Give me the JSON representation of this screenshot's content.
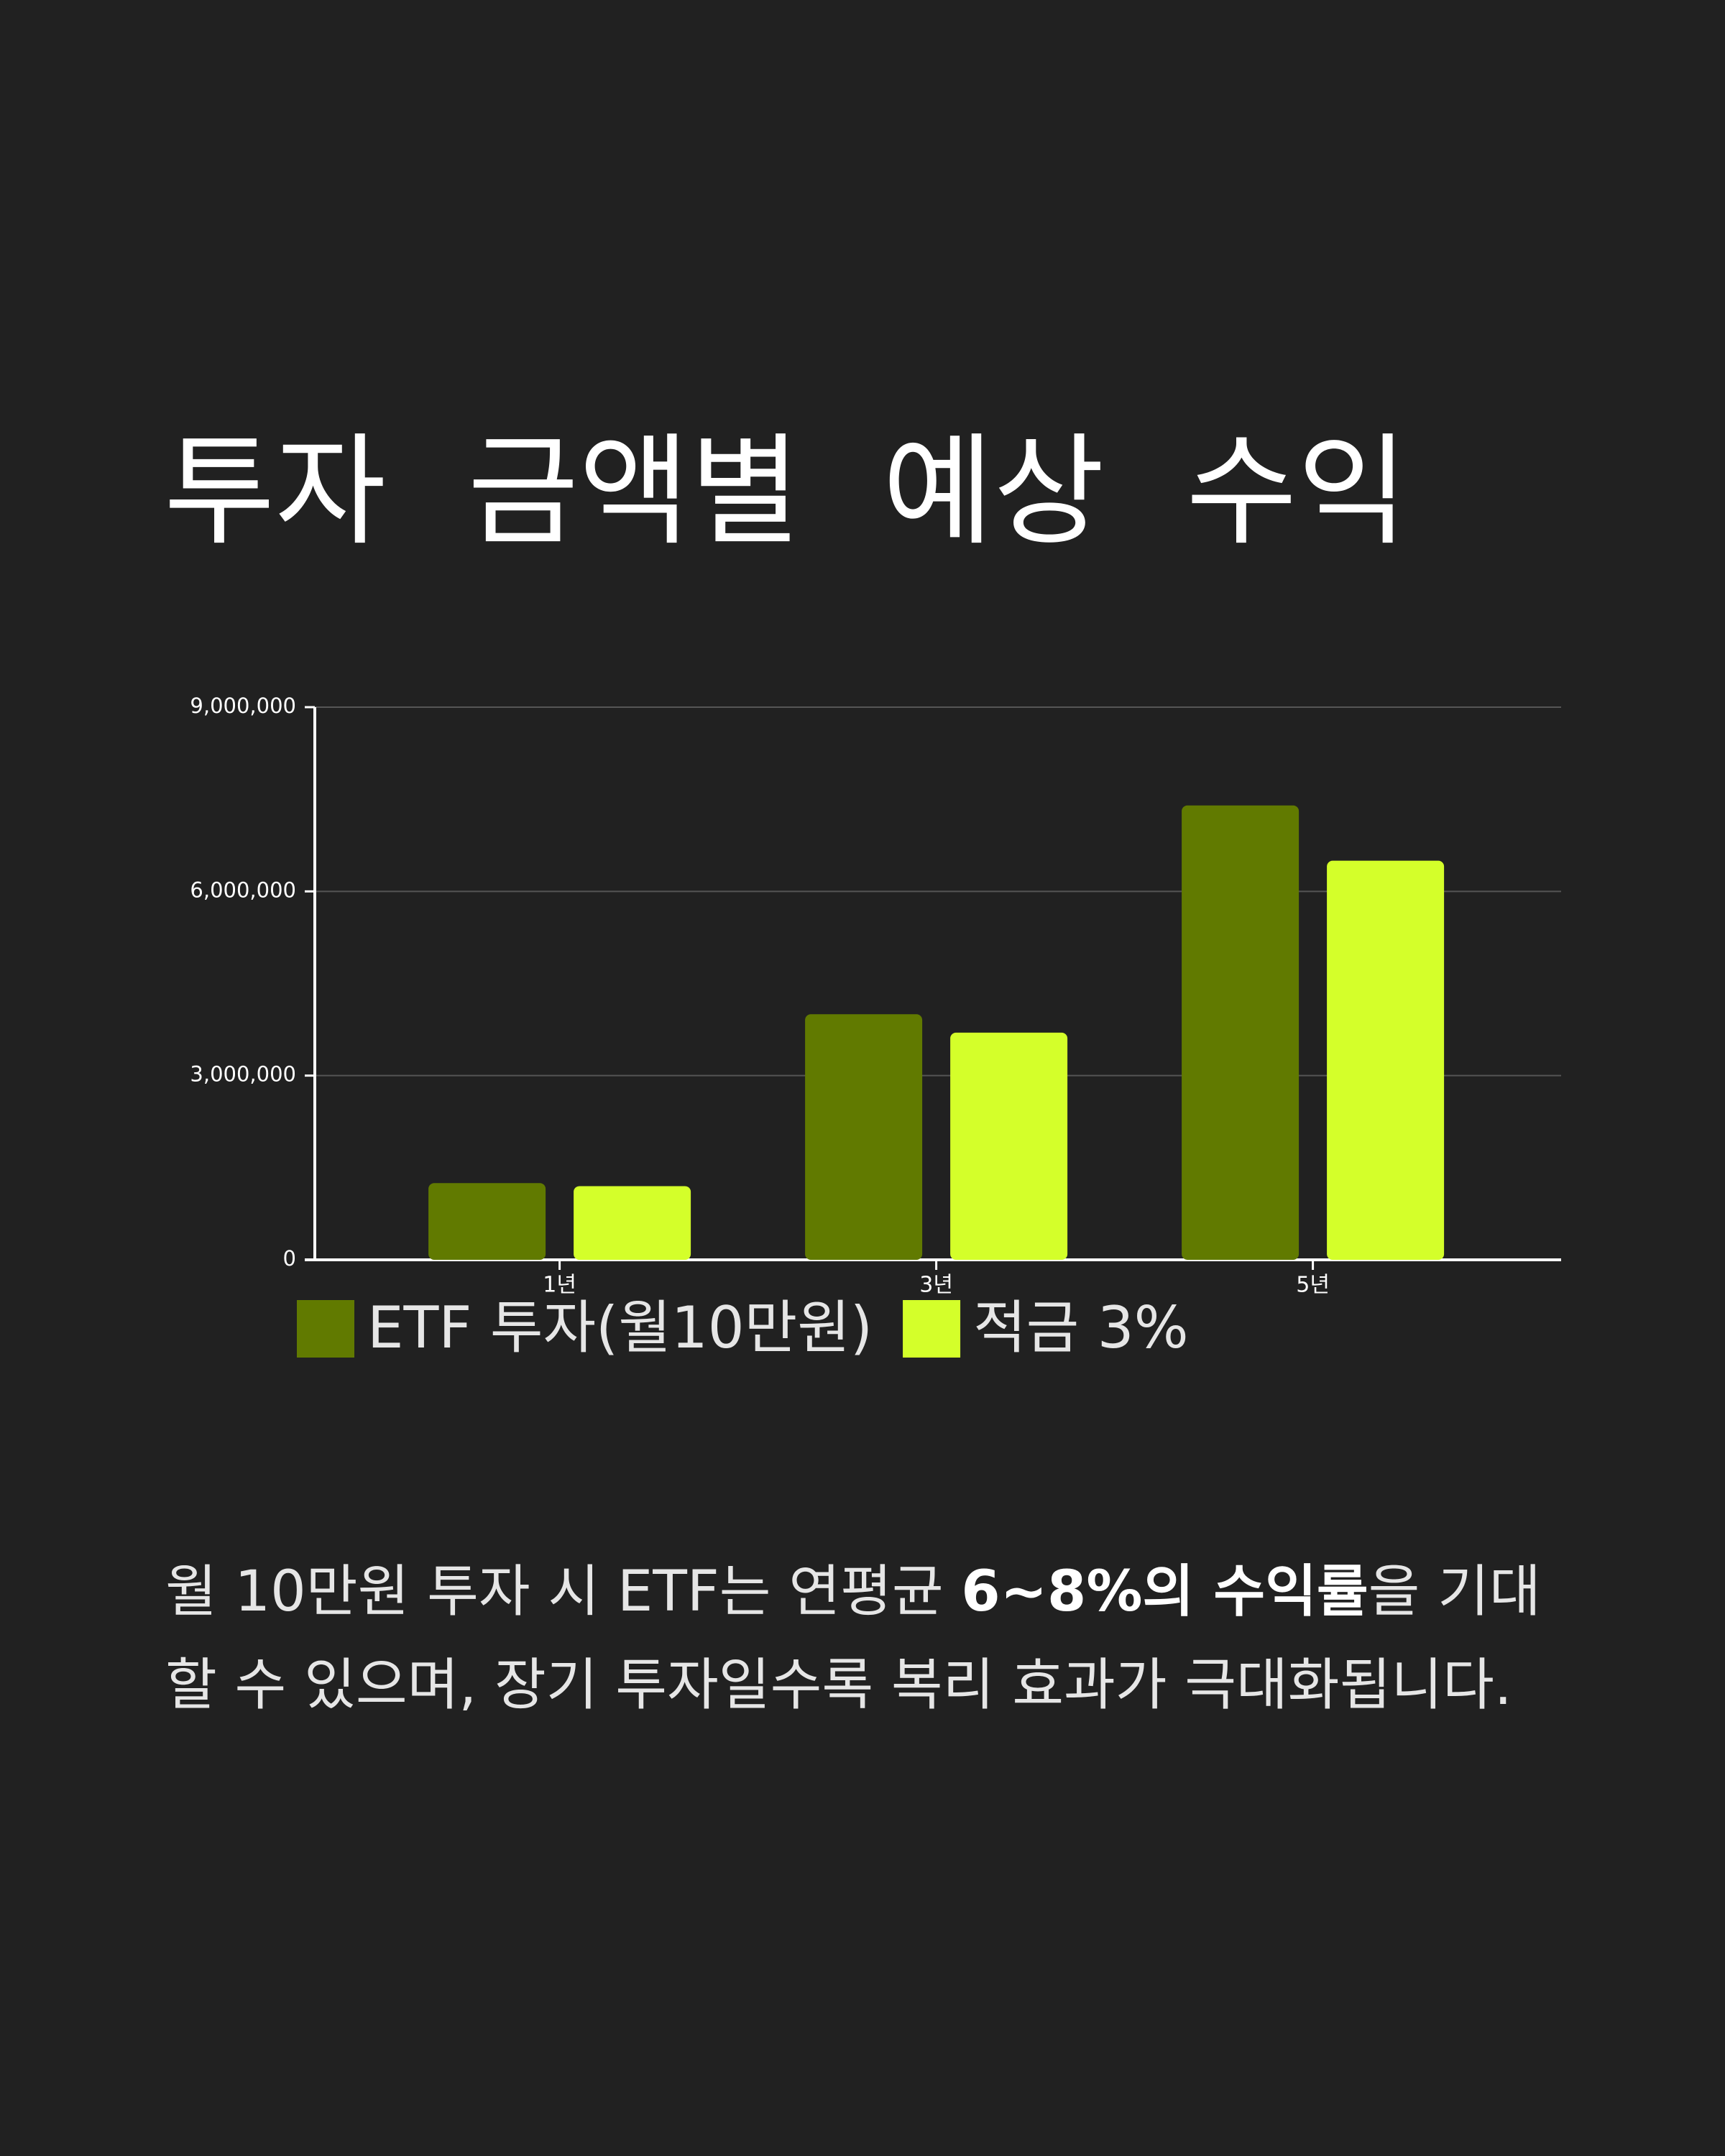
{
  "chart_data": {
    "type": "bar",
    "title": "투자 금액별 예상 수익",
    "categories": [
      "1년",
      "3년",
      "5년"
    ],
    "series": [
      {
        "name": "ETF 투자(월10만원)",
        "color": "#617a00",
        "values": [
          1250000,
          4000000,
          7400000
        ]
      },
      {
        "name": "적금 3%",
        "color": "#d4ff2a",
        "values": [
          1200000,
          3700000,
          6500000
        ]
      }
    ],
    "ylim": [
      0,
      9000000
    ],
    "yticks": [
      0,
      {
        "value": 3000000,
        "label": "3,000,000"
      },
      {
        "value": 6000000,
        "label": "6,000,000"
      },
      {
        "value": 9000000,
        "label": "9,000,000"
      }
    ],
    "grid": true
  },
  "body": {
    "paragraph": [
      "월 10만원 투자 시 ETF는 연평균 ",
      "6~8%의 수익률",
      "을 기대할 수 있으며, 장기 투자일수록 복리 효과가 극대화됩니다."
    ]
  }
}
